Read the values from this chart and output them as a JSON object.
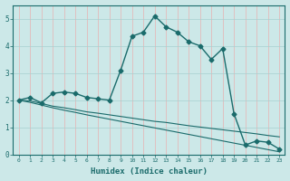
{
  "xlabel": "Humidex (Indice chaleur)",
  "bg_color": "#cce8e8",
  "line_color": "#1a6b6b",
  "grid_color_h": "#a8d0d0",
  "grid_color_v": "#e8b0b0",
  "xlim": [
    -0.5,
    23.5
  ],
  "ylim": [
    0,
    5.5
  ],
  "xticks": [
    0,
    1,
    2,
    3,
    4,
    5,
    6,
    7,
    8,
    9,
    10,
    11,
    12,
    13,
    14,
    15,
    16,
    17,
    18,
    19,
    20,
    21,
    22,
    23
  ],
  "yticks": [
    0,
    1,
    2,
    3,
    4,
    5
  ],
  "series": [
    {
      "x": [
        0,
        1,
        2,
        3,
        4,
        5,
        6,
        7,
        8,
        9,
        10,
        11,
        12,
        13,
        14,
        15,
        16,
        17,
        18,
        19,
        20,
        21,
        22,
        23
      ],
      "y": [
        2.0,
        2.1,
        1.9,
        2.25,
        2.3,
        2.25,
        2.1,
        2.05,
        2.0,
        3.1,
        4.35,
        4.5,
        5.1,
        4.7,
        4.5,
        4.15,
        4.0,
        3.5,
        3.9,
        1.5,
        0.35,
        0.5,
        0.45,
        0.2
      ],
      "marker": "D",
      "markersize": 2.5,
      "linewidth": 1.0
    },
    {
      "x": [
        0,
        1,
        2,
        3,
        4,
        5,
        6,
        7,
        8,
        9,
        10,
        11,
        12,
        13,
        14,
        15,
        16,
        17,
        18,
        19,
        20,
        21,
        22,
        23
      ],
      "y": [
        2.0,
        1.97,
        1.88,
        1.78,
        1.72,
        1.65,
        1.57,
        1.52,
        1.46,
        1.4,
        1.34,
        1.28,
        1.22,
        1.18,
        1.12,
        1.06,
        1.01,
        0.96,
        0.91,
        0.86,
        0.81,
        0.76,
        0.7,
        0.65
      ],
      "marker": null,
      "linewidth": 0.8
    },
    {
      "x": [
        0,
        1,
        2,
        3,
        4,
        5,
        6,
        7,
        8,
        9,
        10,
        11,
        12,
        13,
        14,
        15,
        16,
        17,
        18,
        19,
        20,
        21,
        22,
        23
      ],
      "y": [
        2.0,
        1.92,
        1.82,
        1.72,
        1.63,
        1.55,
        1.46,
        1.38,
        1.3,
        1.22,
        1.14,
        1.06,
        0.98,
        0.9,
        0.82,
        0.74,
        0.66,
        0.58,
        0.5,
        0.42,
        0.34,
        0.26,
        0.18,
        0.1
      ],
      "marker": null,
      "linewidth": 0.8
    }
  ]
}
